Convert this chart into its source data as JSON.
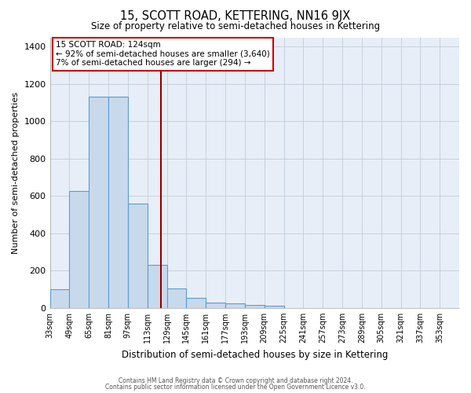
{
  "title": "15, SCOTT ROAD, KETTERING, NN16 9JX",
  "subtitle": "Size of property relative to semi-detached houses in Kettering",
  "xlabel": "Distribution of semi-detached houses by size in Kettering",
  "ylabel": "Number of semi-detached properties",
  "bin_edges": [
    33,
    49,
    65,
    81,
    97,
    113,
    129,
    145,
    161,
    177,
    193,
    209,
    225,
    241,
    257,
    273,
    289,
    305,
    321,
    337,
    353,
    369
  ],
  "bar_heights": [
    100,
    625,
    1130,
    1130,
    560,
    230,
    105,
    55,
    30,
    25,
    15,
    10,
    0,
    0,
    0,
    0,
    0,
    0,
    0,
    0,
    0
  ],
  "bar_color": "#c9d9ec",
  "bar_edge_color": "#5b9bd5",
  "vline_x": 124,
  "vline_color": "#8b0000",
  "ylim": [
    0,
    1450
  ],
  "yticks": [
    0,
    200,
    400,
    600,
    800,
    1000,
    1200,
    1400
  ],
  "annotation_title": "15 SCOTT ROAD: 124sqm",
  "annotation_line1": "← 92% of semi-detached houses are smaller (3,640)",
  "annotation_line2": "7% of semi-detached houses are larger (294) →",
  "annotation_box_color": "#ffffff",
  "annotation_box_edge": "#cc0000",
  "footer1": "Contains HM Land Registry data © Crown copyright and database right 2024.",
  "footer2": "Contains public sector information licensed under the Open Government Licence v3.0.",
  "background_color": "#ffffff",
  "plot_bg_color": "#e8eef7",
  "grid_color": "#c0ccd8"
}
